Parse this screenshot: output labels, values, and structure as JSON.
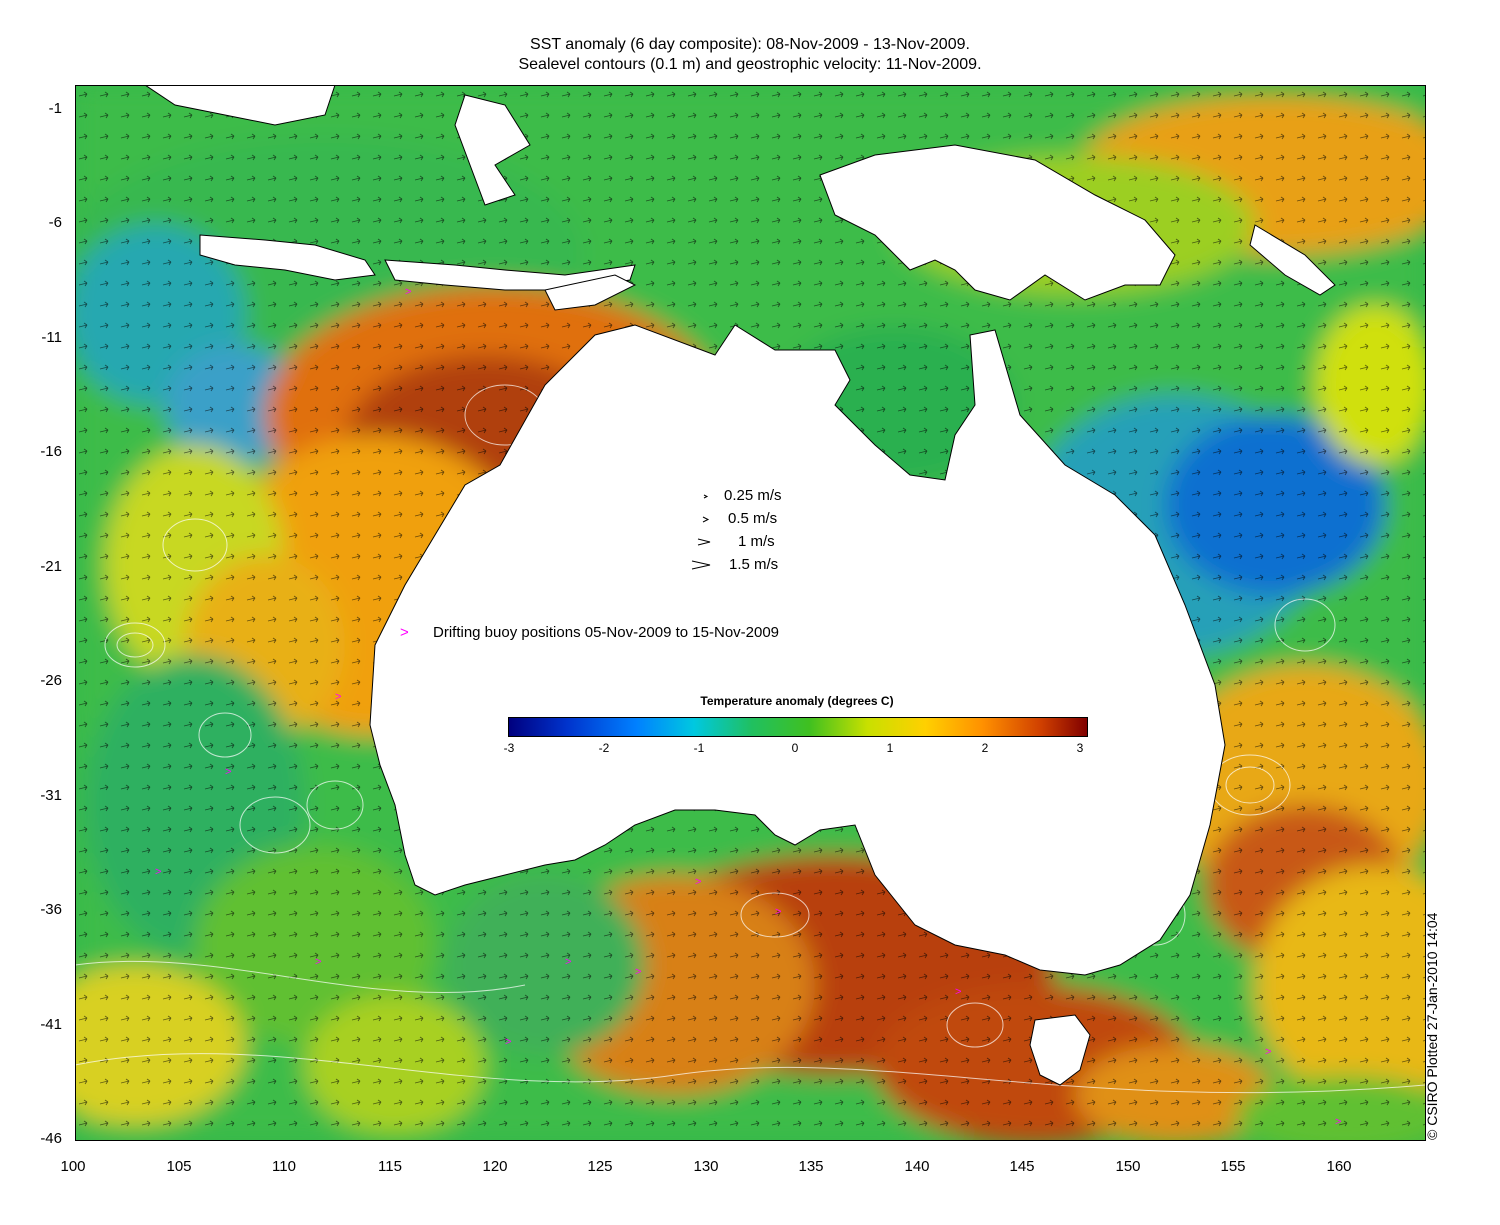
{
  "title": {
    "line1": "SST anomaly (6 day composite): 08-Nov-2009 - 13-Nov-2009.",
    "line2": "Sealevel contours (0.1 m) and geostrophic velocity: 11-Nov-2009."
  },
  "axes": {
    "lon_range": [
      100,
      164
    ],
    "lat_range": [
      -46,
      0
    ],
    "x_ticks": [
      "100",
      "105",
      "110",
      "115",
      "120",
      "125",
      "130",
      "135",
      "140",
      "145",
      "150",
      "155",
      "160"
    ],
    "y_ticks": [
      "-1",
      "-6",
      "-11",
      "-16",
      "-21",
      "-26",
      "-31",
      "-36",
      "-41",
      "-46"
    ]
  },
  "velocity_legend": [
    {
      "label": "0.25 m/s",
      "speed": 0.25
    },
    {
      "label": "0.5 m/s",
      "speed": 0.5
    },
    {
      "label": "1 m/s",
      "speed": 1
    },
    {
      "label": "1.5 m/s",
      "speed": 1.5
    }
  ],
  "buoy_legend": {
    "symbol": ">",
    "label": "Drifting buoy positions 05-Nov-2009 to 15-Nov-2009",
    "color": "#ff00ff"
  },
  "colorbar": {
    "title": "Temperature anomaly (degrees C)",
    "ticks": [
      "-3",
      "-2",
      "-1",
      "0",
      "1",
      "2",
      "3"
    ],
    "range": [
      -3,
      3
    ]
  },
  "credit": "© CSIRO Plotted 27-Jan-2010 14:04",
  "colors": {
    "land": "#ffffff",
    "ocean_base": "#34b84a",
    "warm": "#c85a10",
    "cool": "#1a9ad0",
    "contour": "#ffffff"
  }
}
